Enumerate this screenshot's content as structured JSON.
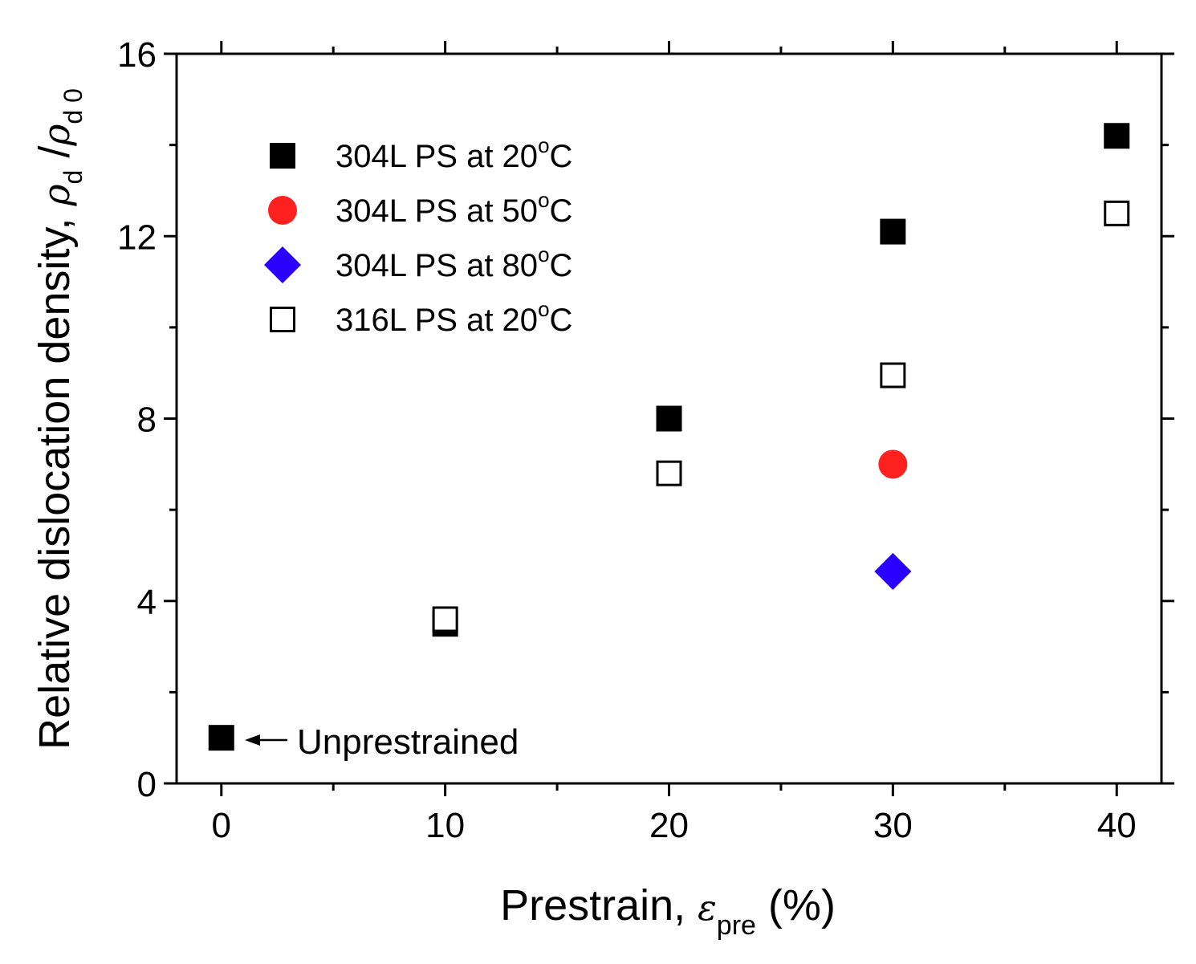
{
  "chart_data": {
    "type": "scatter",
    "title": "",
    "xlabel": {
      "main": "Prestrain, ",
      "symbol": "ε",
      "subscript": "pre",
      "suffix": " (%)"
    },
    "ylabel": {
      "main": "Relative dislocation density, ",
      "symbol1": "ρ",
      "sub1": "d",
      "slash": " /",
      "symbol2": "ρ",
      "sub2": "d 0"
    },
    "xlim": [
      -2,
      42
    ],
    "ylim": [
      0,
      16
    ],
    "xticks": [
      0,
      10,
      20,
      30,
      40
    ],
    "yticks": [
      0,
      4,
      8,
      12,
      16
    ],
    "grid": false,
    "legend_position": "top-left",
    "series": [
      {
        "name": "304L PS at 20",
        "deg": "o",
        "unit": "C",
        "marker": "square-filled",
        "color": "#000000",
        "points": [
          [
            0,
            1.0
          ],
          [
            10,
            3.5
          ],
          [
            20,
            8.0
          ],
          [
            30,
            12.1
          ],
          [
            40,
            14.2
          ]
        ]
      },
      {
        "name": "304L PS at 50",
        "deg": "o",
        "unit": "C",
        "marker": "circle-filled",
        "color": "#ff2020",
        "points": [
          [
            30,
            7.0
          ]
        ]
      },
      {
        "name": "304L PS at 80",
        "deg": "o",
        "unit": "C",
        "marker": "diamond-filled",
        "color": "#2a00ff",
        "points": [
          [
            30,
            4.65
          ]
        ]
      },
      {
        "name": "316L PS at 20",
        "deg": "o",
        "unit": "C",
        "marker": "square-open",
        "color": "#000000",
        "points": [
          [
            10,
            3.6
          ],
          [
            20,
            6.8
          ],
          [
            30,
            8.95
          ],
          [
            40,
            12.5
          ]
        ]
      }
    ],
    "annotations": [
      {
        "text": "Unprestrained",
        "x": 0,
        "y": 1.0
      }
    ]
  }
}
